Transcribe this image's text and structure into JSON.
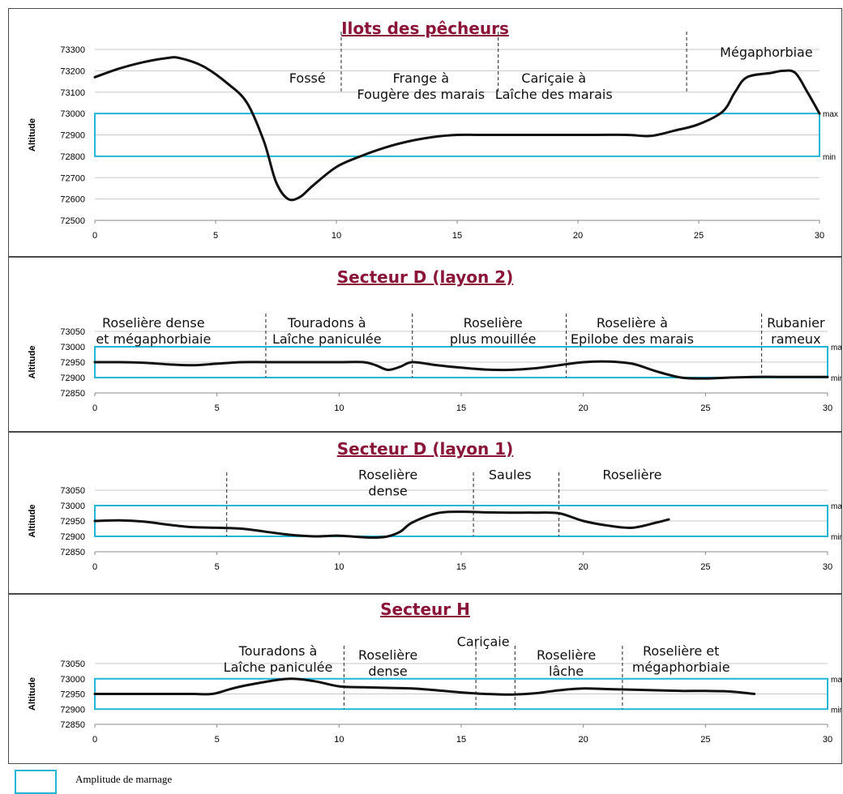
{
  "chart_data": [
    {
      "type": "line",
      "title": "Ilots des pêcheurs",
      "ylabel": "Altitude",
      "xlim": [
        0,
        30
      ],
      "ylim": [
        72500,
        73300
      ],
      "xticks": [
        0,
        5,
        10,
        15,
        20,
        25,
        30
      ],
      "yticks": [
        72500,
        72600,
        72700,
        72800,
        72900,
        73000,
        73100,
        73200,
        73300
      ],
      "grid": "horizontal",
      "band": {
        "min": 72800,
        "max": 73000,
        "max_label": "max",
        "min_label": "min"
      },
      "series": [
        {
          "x": [
            0,
            1,
            2,
            3,
            3.5,
            4.5,
            5.5,
            6.3,
            7,
            7.5,
            8,
            8.5,
            9,
            10,
            11,
            12,
            13,
            14,
            15,
            16,
            18,
            20,
            22,
            23,
            24,
            25,
            26,
            26.5,
            27,
            28,
            28.5,
            29,
            29.5,
            30
          ],
          "y": [
            73170,
            73210,
            73240,
            73260,
            73260,
            73220,
            73140,
            73050,
            72870,
            72680,
            72600,
            72610,
            72660,
            72750,
            72800,
            72840,
            72870,
            72890,
            72900,
            72900,
            72900,
            72900,
            72900,
            72895,
            72920,
            72950,
            73010,
            73100,
            73170,
            73190,
            73200,
            73190,
            73100,
            73000
          ]
        }
      ],
      "dividers": [
        10.2,
        16.7,
        24.5
      ],
      "zones": [
        {
          "lines": [
            "Fossé"
          ],
          "x": 8.8,
          "y": 73145
        },
        {
          "lines": [
            "Frange à",
            "Fougère des marais"
          ],
          "x": 13.5,
          "y": 73145
        },
        {
          "lines": [
            "Cariçaie  à",
            "Laîche des marais"
          ],
          "x": 19,
          "y": 73145
        },
        {
          "lines": [
            "Mégaphorbiae"
          ],
          "x": 27.8,
          "y": 73265
        }
      ]
    },
    {
      "type": "line",
      "title": "Secteur D (layon 2)",
      "ylabel": "Altitude",
      "xlim": [
        0,
        30
      ],
      "ylim": [
        72850,
        73050
      ],
      "xticks": [
        0,
        5,
        10,
        15,
        20,
        25,
        30
      ],
      "yticks": [
        72850,
        72900,
        72950,
        73000,
        73050
      ],
      "grid": "horizontal",
      "band": {
        "min": 72900,
        "max": 73000,
        "max_label": "max",
        "min_label": "min"
      },
      "series": [
        {
          "x": [
            0,
            1,
            2,
            3,
            4,
            5,
            6,
            7,
            8,
            9,
            10,
            11,
            11.5,
            12,
            12.5,
            13,
            14,
            15,
            16,
            17,
            18,
            19,
            20,
            21,
            22,
            23,
            24,
            25,
            26,
            27,
            28,
            29,
            30
          ],
          "y": [
            72950,
            72950,
            72948,
            72943,
            72940,
            72945,
            72950,
            72950,
            72950,
            72950,
            72950,
            72950,
            72940,
            72925,
            72935,
            72950,
            72940,
            72932,
            72926,
            72925,
            72930,
            72940,
            72950,
            72952,
            72945,
            72920,
            72900,
            72897,
            72900,
            72902,
            72902,
            72902,
            72902
          ]
        }
      ],
      "dividers": [
        7,
        13,
        19.3,
        27.3
      ],
      "zones": [
        {
          "lines": [
            "Roselière  dense",
            "et mégaphorbiaie"
          ],
          "x": 2.4,
          "y": 73063
        },
        {
          "lines": [
            "Touradons à",
            "Laîche paniculée"
          ],
          "x": 9.5,
          "y": 73063
        },
        {
          "lines": [
            "Roselière",
            "plus mouillée"
          ],
          "x": 16.3,
          "y": 73063
        },
        {
          "lines": [
            "Roselière  à",
            "Epilobe des marais"
          ],
          "x": 22,
          "y": 73063
        },
        {
          "lines": [
            "Rubanier",
            "rameux"
          ],
          "x": 28.7,
          "y": 73063
        }
      ]
    },
    {
      "type": "line",
      "title": "Secteur D (layon 1)",
      "ylabel": "Altitude",
      "xlim": [
        0,
        30
      ],
      "ylim": [
        72850,
        73050
      ],
      "xticks": [
        0,
        5,
        10,
        15,
        20,
        25,
        30
      ],
      "yticks": [
        72850,
        72900,
        72950,
        73000,
        73050
      ],
      "grid": "horizontal",
      "band": {
        "min": 72900,
        "max": 73000,
        "max_label": "max",
        "min_label": "min"
      },
      "series": [
        {
          "x": [
            0,
            1,
            2,
            3,
            4,
            5,
            6,
            7,
            8,
            9,
            10,
            11,
            11.5,
            12,
            12.5,
            13,
            14,
            15,
            16,
            17,
            18,
            19,
            20,
            21,
            22,
            23,
            23.5
          ],
          "y": [
            72950,
            72952,
            72948,
            72938,
            72930,
            72928,
            72925,
            72915,
            72905,
            72900,
            72902,
            72897,
            72896,
            72900,
            72915,
            72945,
            72975,
            72980,
            72978,
            72977,
            72977,
            72975,
            72950,
            72935,
            72928,
            72945,
            72955
          ]
        }
      ],
      "dividers": [
        5.4,
        15.5,
        19
      ],
      "zones": [
        {
          "lines": [
            "Roselière",
            "dense"
          ],
          "x": 12,
          "y": 73085
        },
        {
          "lines": [
            "Saules"
          ],
          "x": 17,
          "y": 73085
        },
        {
          "lines": [
            "Roselière"
          ],
          "x": 22,
          "y": 73085
        }
      ]
    },
    {
      "type": "line",
      "title": "Secteur H",
      "ylabel": "Altitude",
      "xlim": [
        0,
        30
      ],
      "ylim": [
        72850,
        73050
      ],
      "xticks": [
        0,
        5,
        10,
        15,
        20,
        25,
        30
      ],
      "yticks": [
        72850,
        72900,
        72950,
        73000,
        73050
      ],
      "grid": "horizontal",
      "band": {
        "min": 72900,
        "max": 73000,
        "max_label": "max",
        "min_label": "min"
      },
      "series": [
        {
          "x": [
            0,
            1,
            2,
            3,
            4,
            4.8,
            5.5,
            6,
            7,
            8,
            9,
            10,
            11,
            12,
            13,
            14,
            15,
            16,
            17,
            18,
            19,
            20,
            21,
            22,
            23,
            24,
            25,
            26,
            27
          ],
          "y": [
            72950,
            72950,
            72950,
            72950,
            72950,
            72950,
            72965,
            72975,
            72990,
            73000,
            72992,
            72975,
            72972,
            72970,
            72968,
            72962,
            72955,
            72950,
            72948,
            72952,
            72962,
            72968,
            72966,
            72964,
            72962,
            72960,
            72960,
            72958,
            72950
          ]
        }
      ],
      "dividers": [
        10.2,
        15.6,
        17.2,
        21.6
      ],
      "zones": [
        {
          "lines": [
            "Touradons à",
            "Laîche paniculée"
          ],
          "x": 7.5,
          "y": 73077
        },
        {
          "lines": [
            "Roselière",
            "dense"
          ],
          "x": 12,
          "y": 73063
        },
        {
          "lines": [
            "Cariçaie"
          ],
          "x": 15.9,
          "y": 73107
        },
        {
          "lines": [
            "Roselière",
            "lâche"
          ],
          "x": 19.3,
          "y": 73063
        },
        {
          "lines": [
            "Roselière et",
            "mégaphorbiaie"
          ],
          "x": 24,
          "y": 73077
        }
      ]
    }
  ],
  "legend": {
    "label": "Amplitude de marnage",
    "color": "#22b5d6"
  },
  "colors": {
    "title": "#8a1538",
    "band": "#22b5d6",
    "line": "#111111",
    "grid": "#c8c8c8"
  }
}
